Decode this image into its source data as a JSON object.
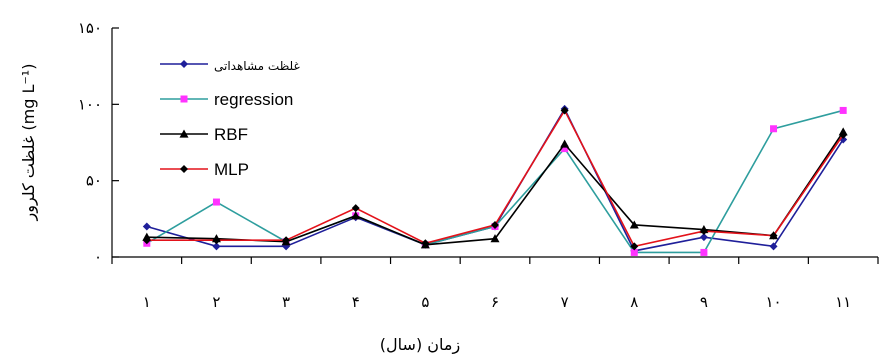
{
  "chart_data": {
    "type": "line",
    "categories": [
      "۱",
      "۲",
      "۳",
      "۴",
      "۵",
      "۶",
      "۷",
      "۸",
      "۹",
      "۱۰",
      "۱۱"
    ],
    "xlabel": "زمان (سال)",
    "ylabel": "غلظت کلرور (mg L⁻¹)",
    "ylim": [
      0,
      150
    ],
    "yticks": [
      {
        "value": 0,
        "label": "۰"
      },
      {
        "value": 50,
        "label": "۵۰"
      },
      {
        "value": 100,
        "label": "۱۰۰"
      },
      {
        "value": 150,
        "label": "۱۵۰"
      }
    ],
    "grid": false,
    "legend_position": "top-left",
    "series": [
      {
        "name": "غلظت مشاهداتی",
        "color": "#1f1f9a",
        "marker": "diamond",
        "values": [
          20,
          7,
          7,
          26,
          8,
          20,
          97,
          4,
          13,
          7,
          77
        ]
      },
      {
        "name": "regression",
        "color": "#2e9e9e",
        "marker": "square",
        "marker_color": "#ff33ff",
        "values": [
          9,
          36,
          10,
          27,
          8,
          20,
          71,
          3,
          3,
          84,
          96
        ]
      },
      {
        "name": "RBF",
        "color": "#000000",
        "marker": "triangle",
        "values": [
          13,
          12,
          10,
          27,
          8,
          12,
          74,
          21,
          18,
          14,
          82
        ]
      },
      {
        "name": "MLP",
        "color": "#e3121a",
        "marker": "diamond",
        "marker_color": "#000000",
        "values": [
          11,
          11,
          11,
          32,
          9,
          21,
          96,
          7,
          17,
          14,
          80
        ]
      }
    ]
  }
}
